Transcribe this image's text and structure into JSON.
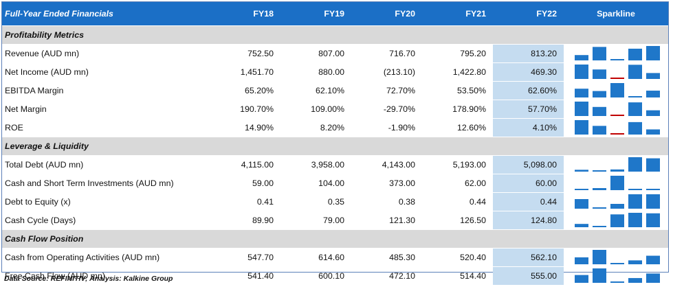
{
  "header": {
    "title": "Full-Year Ended Financials",
    "columns": [
      "FY18",
      "FY19",
      "FY20",
      "FY21",
      "FY22"
    ],
    "sparkline_label": "Sparkline"
  },
  "sections": [
    {
      "title": "Profitability Metrics",
      "rows": [
        {
          "label": "Revenue (AUD mn)",
          "values": [
            "752.50",
            "807.00",
            "716.70",
            "795.20",
            "813.20"
          ],
          "series": [
            752.5,
            807.0,
            716.7,
            795.2,
            813.2
          ]
        },
        {
          "label": "Net Income (AUD mn)",
          "values": [
            "1,451.70",
            "880.00",
            "(213.10)",
            "1,422.80",
            "469.30"
          ],
          "series": [
            1451.7,
            880.0,
            -213.1,
            1422.8,
            469.3
          ]
        },
        {
          "label": "EBITDA Margin",
          "values": [
            "65.20%",
            "62.10%",
            "72.70%",
            "53.50%",
            "62.60%"
          ],
          "series": [
            65.2,
            62.1,
            72.7,
            53.5,
            62.6
          ]
        },
        {
          "label": "Net Margin",
          "values": [
            "190.70%",
            "109.00%",
            "-29.70%",
            "178.90%",
            "57.70%"
          ],
          "series": [
            190.7,
            109.0,
            -29.7,
            178.9,
            57.7
          ]
        },
        {
          "label": "ROE",
          "values": [
            "14.90%",
            "8.20%",
            "-1.90%",
            "12.60%",
            "4.10%"
          ],
          "series": [
            14.9,
            8.2,
            -1.9,
            12.6,
            4.1
          ]
        }
      ]
    },
    {
      "title": "Leverage & Liquidity",
      "rows": [
        {
          "label": "Total Debt (AUD mn)",
          "values": [
            "4,115.00",
            "3,958.00",
            "4,143.00",
            "5,193.00",
            "5,098.00"
          ],
          "series": [
            4115.0,
            3958.0,
            4143.0,
            5193.0,
            5098.0
          ]
        },
        {
          "label": "Cash and Short Term Investments (AUD mn)",
          "values": [
            "59.00",
            "104.00",
            "373.00",
            "62.00",
            "60.00"
          ],
          "series": [
            59.0,
            104.0,
            373.0,
            62.0,
            60.0
          ]
        },
        {
          "label": "Debt to Equity (x)",
          "values": [
            "0.41",
            "0.35",
            "0.38",
            "0.44",
            "0.44"
          ],
          "series": [
            0.41,
            0.35,
            0.38,
            0.44,
            0.44
          ]
        },
        {
          "label": "Cash Cycle (Days)",
          "values": [
            "89.90",
            "79.00",
            "121.30",
            "126.50",
            "124.80"
          ],
          "series": [
            89.9,
            79.0,
            121.3,
            126.5,
            124.8
          ]
        }
      ]
    },
    {
      "title": "Cash Flow Position",
      "rows": [
        {
          "label": "Cash from Operating Activities (AUD mn)",
          "values": [
            "547.70",
            "614.60",
            "485.30",
            "520.40",
            "562.10"
          ],
          "series": [
            547.7,
            614.6,
            485.3,
            520.4,
            562.1
          ]
        },
        {
          "label": "Free Cash Flow (AUD mn)",
          "values": [
            "541.40",
            "600.10",
            "472.10",
            "514.40",
            "555.00"
          ],
          "series": [
            541.4,
            600.1,
            472.1,
            514.4,
            555.0
          ]
        }
      ]
    }
  ],
  "footer": "Data Source: REFINITIV; Analysis: Kalkine Group",
  "colors": {
    "header_bg": "#1b6fc6",
    "highlight_col": "#c5dcf0",
    "section_bg": "#d9d9d9",
    "bar_positive": "#1f77c9",
    "bar_negative": "#c00000"
  }
}
